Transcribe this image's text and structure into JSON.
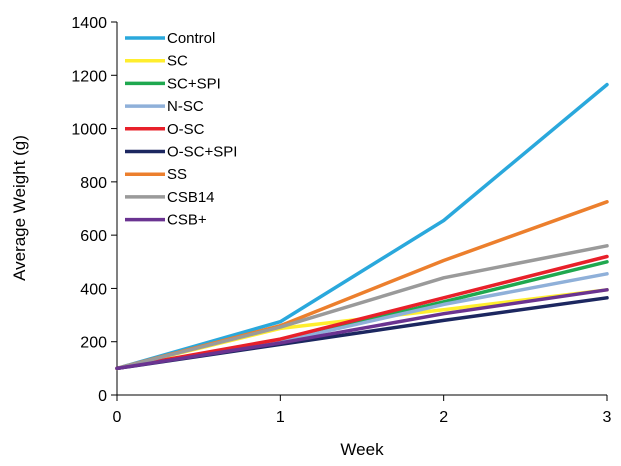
{
  "chart_data": {
    "type": "line",
    "xlabel": "Week",
    "ylabel": "Average Weight (g)",
    "x": [
      0,
      1,
      2,
      3
    ],
    "xlim": [
      0,
      3
    ],
    "ylim": [
      0,
      1400
    ],
    "xticks": [
      "0",
      "1",
      "2",
      "3"
    ],
    "yticks": [
      "0",
      "200",
      "400",
      "600",
      "800",
      "1000",
      "1200",
      "1400"
    ],
    "grid": false,
    "legend_position": "top-left",
    "series": [
      {
        "name": "Control",
        "color": "#2aa8dc",
        "values": [
          100,
          275,
          655,
          1165
        ]
      },
      {
        "name": "SC",
        "color": "#ffee2e",
        "values": [
          100,
          250,
          320,
          395
        ]
      },
      {
        "name": "SC+SPI",
        "color": "#1fa84f",
        "values": [
          100,
          205,
          350,
          500
        ]
      },
      {
        "name": "N-SC",
        "color": "#8fb0d9",
        "values": [
          100,
          200,
          340,
          455
        ]
      },
      {
        "name": "O-SC",
        "color": "#e8202a",
        "values": [
          100,
          210,
          365,
          520
        ]
      },
      {
        "name": "O-SC+SPI",
        "color": "#1c2760",
        "values": [
          100,
          190,
          280,
          365
        ]
      },
      {
        "name": "SS",
        "color": "#ec7f2d",
        "values": [
          100,
          260,
          505,
          725
        ]
      },
      {
        "name": "CSB14",
        "color": "#9a9a9a",
        "values": [
          100,
          255,
          440,
          560
        ]
      },
      {
        "name": "CSB+",
        "color": "#6a3391",
        "values": [
          100,
          195,
          305,
          395
        ]
      }
    ]
  }
}
